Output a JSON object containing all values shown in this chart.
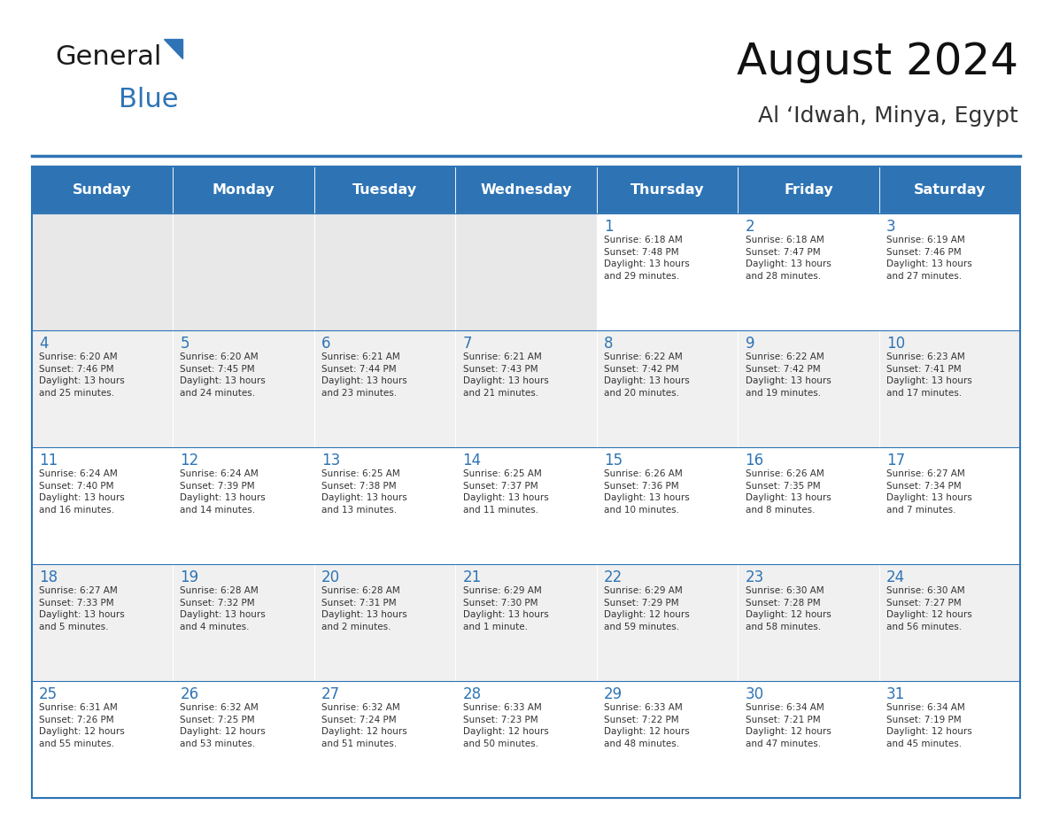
{
  "title": "August 2024",
  "subtitle": "Al ‘Idwah, Minya, Egypt",
  "header_color": "#2E74B5",
  "header_text_color": "#FFFFFF",
  "days_of_week": [
    "Sunday",
    "Monday",
    "Tuesday",
    "Wednesday",
    "Thursday",
    "Friday",
    "Saturday"
  ],
  "weeks": [
    [
      {
        "day": "",
        "info": ""
      },
      {
        "day": "",
        "info": ""
      },
      {
        "day": "",
        "info": ""
      },
      {
        "day": "",
        "info": ""
      },
      {
        "day": "1",
        "info": "Sunrise: 6:18 AM\nSunset: 7:48 PM\nDaylight: 13 hours\nand 29 minutes."
      },
      {
        "day": "2",
        "info": "Sunrise: 6:18 AM\nSunset: 7:47 PM\nDaylight: 13 hours\nand 28 minutes."
      },
      {
        "day": "3",
        "info": "Sunrise: 6:19 AM\nSunset: 7:46 PM\nDaylight: 13 hours\nand 27 minutes."
      }
    ],
    [
      {
        "day": "4",
        "info": "Sunrise: 6:20 AM\nSunset: 7:46 PM\nDaylight: 13 hours\nand 25 minutes."
      },
      {
        "day": "5",
        "info": "Sunrise: 6:20 AM\nSunset: 7:45 PM\nDaylight: 13 hours\nand 24 minutes."
      },
      {
        "day": "6",
        "info": "Sunrise: 6:21 AM\nSunset: 7:44 PM\nDaylight: 13 hours\nand 23 minutes."
      },
      {
        "day": "7",
        "info": "Sunrise: 6:21 AM\nSunset: 7:43 PM\nDaylight: 13 hours\nand 21 minutes."
      },
      {
        "day": "8",
        "info": "Sunrise: 6:22 AM\nSunset: 7:42 PM\nDaylight: 13 hours\nand 20 minutes."
      },
      {
        "day": "9",
        "info": "Sunrise: 6:22 AM\nSunset: 7:42 PM\nDaylight: 13 hours\nand 19 minutes."
      },
      {
        "day": "10",
        "info": "Sunrise: 6:23 AM\nSunset: 7:41 PM\nDaylight: 13 hours\nand 17 minutes."
      }
    ],
    [
      {
        "day": "11",
        "info": "Sunrise: 6:24 AM\nSunset: 7:40 PM\nDaylight: 13 hours\nand 16 minutes."
      },
      {
        "day": "12",
        "info": "Sunrise: 6:24 AM\nSunset: 7:39 PM\nDaylight: 13 hours\nand 14 minutes."
      },
      {
        "day": "13",
        "info": "Sunrise: 6:25 AM\nSunset: 7:38 PM\nDaylight: 13 hours\nand 13 minutes."
      },
      {
        "day": "14",
        "info": "Sunrise: 6:25 AM\nSunset: 7:37 PM\nDaylight: 13 hours\nand 11 minutes."
      },
      {
        "day": "15",
        "info": "Sunrise: 6:26 AM\nSunset: 7:36 PM\nDaylight: 13 hours\nand 10 minutes."
      },
      {
        "day": "16",
        "info": "Sunrise: 6:26 AM\nSunset: 7:35 PM\nDaylight: 13 hours\nand 8 minutes."
      },
      {
        "day": "17",
        "info": "Sunrise: 6:27 AM\nSunset: 7:34 PM\nDaylight: 13 hours\nand 7 minutes."
      }
    ],
    [
      {
        "day": "18",
        "info": "Sunrise: 6:27 AM\nSunset: 7:33 PM\nDaylight: 13 hours\nand 5 minutes."
      },
      {
        "day": "19",
        "info": "Sunrise: 6:28 AM\nSunset: 7:32 PM\nDaylight: 13 hours\nand 4 minutes."
      },
      {
        "day": "20",
        "info": "Sunrise: 6:28 AM\nSunset: 7:31 PM\nDaylight: 13 hours\nand 2 minutes."
      },
      {
        "day": "21",
        "info": "Sunrise: 6:29 AM\nSunset: 7:30 PM\nDaylight: 13 hours\nand 1 minute."
      },
      {
        "day": "22",
        "info": "Sunrise: 6:29 AM\nSunset: 7:29 PM\nDaylight: 12 hours\nand 59 minutes."
      },
      {
        "day": "23",
        "info": "Sunrise: 6:30 AM\nSunset: 7:28 PM\nDaylight: 12 hours\nand 58 minutes."
      },
      {
        "day": "24",
        "info": "Sunrise: 6:30 AM\nSunset: 7:27 PM\nDaylight: 12 hours\nand 56 minutes."
      }
    ],
    [
      {
        "day": "25",
        "info": "Sunrise: 6:31 AM\nSunset: 7:26 PM\nDaylight: 12 hours\nand 55 minutes."
      },
      {
        "day": "26",
        "info": "Sunrise: 6:32 AM\nSunset: 7:25 PM\nDaylight: 12 hours\nand 53 minutes."
      },
      {
        "day": "27",
        "info": "Sunrise: 6:32 AM\nSunset: 7:24 PM\nDaylight: 12 hours\nand 51 minutes."
      },
      {
        "day": "28",
        "info": "Sunrise: 6:33 AM\nSunset: 7:23 PM\nDaylight: 12 hours\nand 50 minutes."
      },
      {
        "day": "29",
        "info": "Sunrise: 6:33 AM\nSunset: 7:22 PM\nDaylight: 12 hours\nand 48 minutes."
      },
      {
        "day": "30",
        "info": "Sunrise: 6:34 AM\nSunset: 7:21 PM\nDaylight: 12 hours\nand 47 minutes."
      },
      {
        "day": "31",
        "info": "Sunrise: 6:34 AM\nSunset: 7:19 PM\nDaylight: 12 hours\nand 45 minutes."
      }
    ]
  ],
  "odd_row_color": "#FFFFFF",
  "even_row_color": "#F0F0F0",
  "empty_cell_color": "#E8E8E8",
  "border_color": "#2E74B5",
  "day_number_color": "#2E74B5",
  "info_text_color": "#333333",
  "logo_general_color": "#1a1a1a",
  "logo_blue_color": "#2E74B5",
  "separator_color": "#2E74B5"
}
